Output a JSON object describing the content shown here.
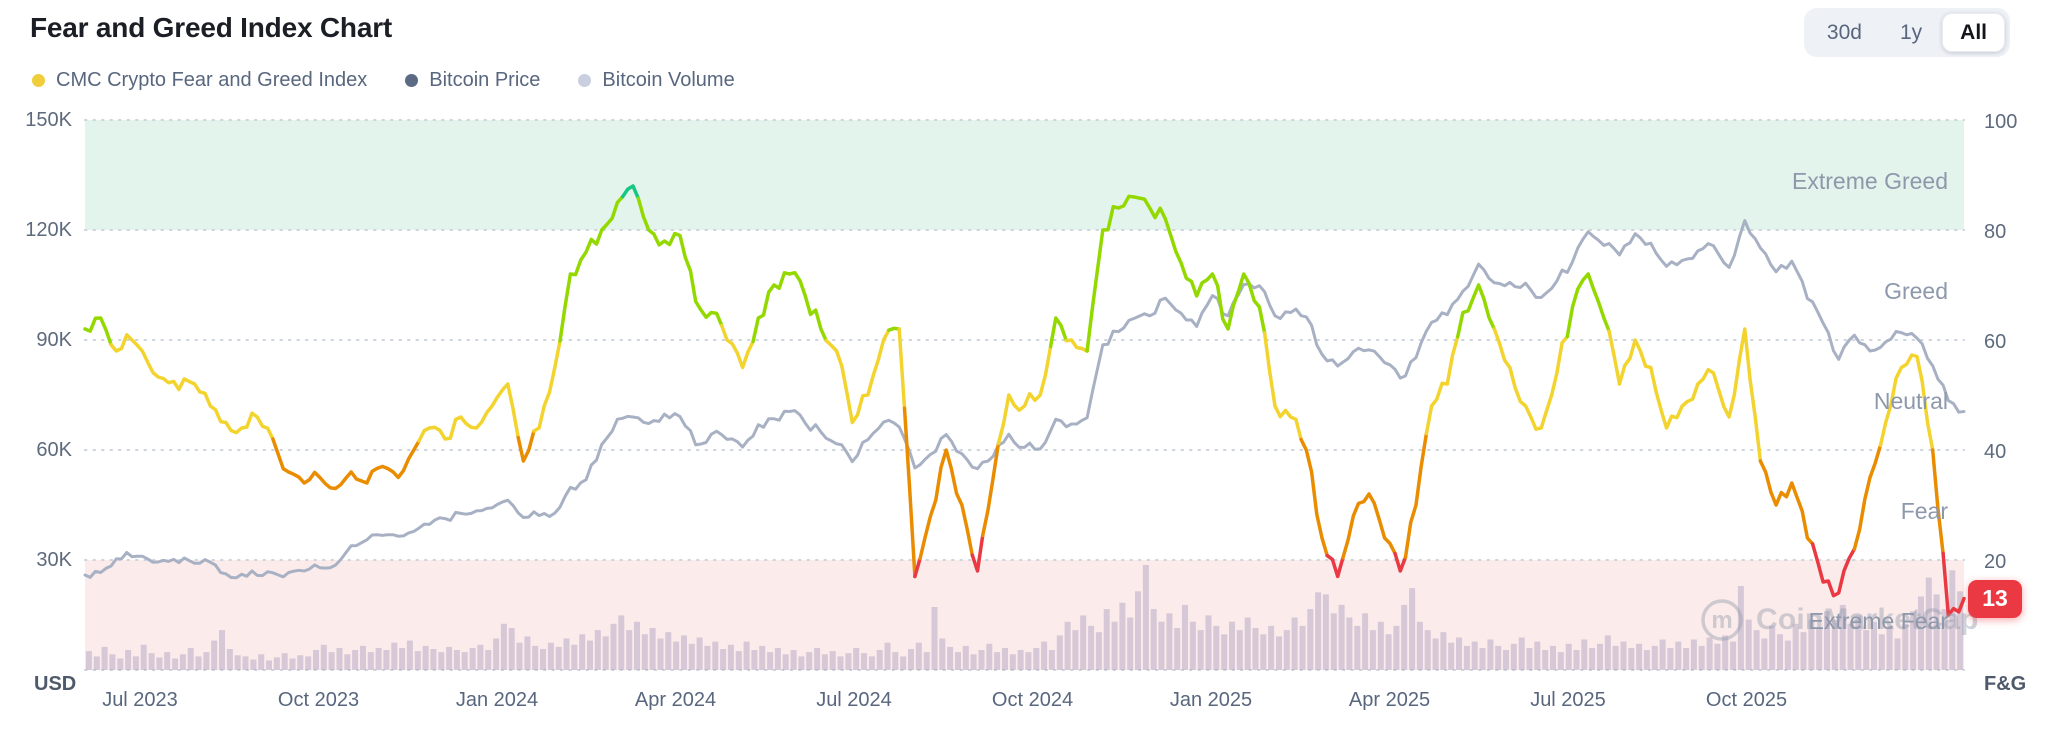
{
  "header": {
    "title": "Fear and Greed Index Chart",
    "range_buttons": [
      {
        "label": "30d",
        "active": false
      },
      {
        "label": "1y",
        "active": false
      },
      {
        "label": "All",
        "active": true
      }
    ]
  },
  "legend": [
    {
      "label": "CMC Crypto Fear and Greed Index",
      "color": "#F0CD3A"
    },
    {
      "label": "Bitcoin Price",
      "color": "#5D6A85"
    },
    {
      "label": "Bitcoin Volume",
      "color": "#C9CFDF"
    }
  ],
  "badge": {
    "value": "13",
    "color": "#EA3943"
  },
  "watermark": {
    "text": "CoinMarketCap"
  },
  "chart_data": {
    "type": "line",
    "title": "Fear and Greed Index Chart",
    "x_ticks": [
      "Jul 2023",
      "Oct 2023",
      "Jan 2024",
      "Apr 2024",
      "Jul 2024",
      "Oct 2024",
      "Jan 2025",
      "Apr 2025",
      "Jul 2025",
      "Oct 2025"
    ],
    "y_left": {
      "unit": "USD",
      "labels": [
        "150K",
        "120K",
        "90K",
        "60K",
        "30K"
      ],
      "range_usd_k": [
        0,
        150
      ],
      "grid": true
    },
    "y_right": {
      "unit": "F&G",
      "labels": [
        "100",
        "80",
        "60",
        "40",
        "20"
      ],
      "range": [
        0,
        100
      ]
    },
    "bands": [
      {
        "name": "extreme-greed-band",
        "range": [
          80,
          100
        ],
        "color": "#e3f4ec"
      },
      {
        "name": "extreme-fear-band",
        "range": [
          0,
          20
        ],
        "color": "#fcebeb"
      }
    ],
    "zone_labels": [
      {
        "label": "Extreme Greed",
        "fg": 90
      },
      {
        "label": "Greed",
        "fg": 70
      },
      {
        "label": "Neutral",
        "fg": 50
      },
      {
        "label": "Fear",
        "fg": 30
      },
      {
        "label": "Extreme Fear",
        "fg": 10
      }
    ],
    "fg_series": {
      "name": "CMC Crypto Fear and Greed Index",
      "current_value": 13,
      "color_stops": [
        {
          "min": 86,
          "color": "#16C784"
        },
        {
          "min": 61,
          "color": "#93D900"
        },
        {
          "min": 42,
          "color": "#F3D42F"
        },
        {
          "min": 21,
          "color": "#EA8C00"
        },
        {
          "min": 0,
          "color": "#EA3943"
        }
      ],
      "values": [
        62,
        64,
        58,
        60,
        56,
        53,
        51,
        52,
        48,
        45,
        44,
        46,
        42,
        36,
        34,
        35,
        33,
        36,
        34,
        37,
        35,
        40,
        44,
        42,
        46,
        44,
        48,
        52,
        38,
        44,
        55,
        72,
        76,
        80,
        85,
        88,
        80,
        78,
        79,
        67,
        65,
        60,
        55,
        64,
        70,
        72,
        68,
        62,
        58,
        45,
        50,
        60,
        62,
        17,
        28,
        40,
        30,
        18,
        35,
        50,
        48,
        50,
        64,
        60,
        58,
        80,
        84,
        86,
        84,
        82,
        74,
        68,
        72,
        62,
        72,
        66,
        48,
        46,
        40,
        24,
        17,
        28,
        32,
        24,
        18,
        30,
        48,
        52,
        65,
        70,
        62,
        55,
        48,
        44,
        54,
        66,
        72,
        64,
        52,
        60,
        55,
        44,
        48,
        52,
        54,
        46,
        62,
        38,
        30,
        34,
        24,
        16,
        14,
        22,
        35,
        45,
        55,
        57,
        40,
        10,
        13
      ]
    },
    "btc_series": {
      "name": "Bitcoin Price",
      "color": "#a8b1c4",
      "values_usd_k": [
        25.9,
        26.6,
        30.3,
        30.9,
        30.3,
        29.9,
        29.3,
        29.1,
        29.4,
        26.2,
        26.1,
        25.8,
        26.5,
        26.6,
        27.0,
        27.9,
        28.6,
        33.9,
        35.5,
        36.7,
        36.5,
        37.8,
        39.7,
        41.3,
        42.7,
        43.4,
        44.2,
        46.3,
        41.6,
        42.1,
        42.8,
        49.8,
        51.9,
        61.5,
        68.4,
        69.0,
        67.2,
        69.8,
        69.1,
        61.4,
        64.3,
        62.9,
        60.8,
        66.9,
        68.5,
        70.5,
        67.3,
        64.9,
        61.7,
        56.8,
        62.8,
        67.6,
        66.3,
        55.1,
        58.8,
        64.2,
        59.0,
        54.9,
        58.3,
        64.3,
        60.7,
        60.3,
        68.4,
        67.1,
        68.8,
        88.7,
        92.3,
        95.9,
        96.6,
        101.4,
        97.3,
        93.7,
        102.1,
        96.6,
        105.1,
        104.8,
        96.6,
        97.5,
        96.3,
        86.1,
        82.9,
        86.8,
        87.3,
        83.8,
        79.6,
        85.2,
        94.8,
        96.9,
        103.3,
        110.7,
        105.6,
        105.7,
        105.5,
        101.6,
        106.1,
        111.3,
        119.5,
        115.8,
        113.2,
        119.0,
        116.4,
        110.1,
        111.7,
        114.3,
        115.7,
        109.8,
        122.6,
        115.1,
        108.6,
        111.5,
        101.3,
        94.6,
        84.7,
        91.3,
        87.0,
        89.5,
        92.0,
        90.5,
        83.0,
        73.5,
        70.5
      ]
    },
    "volume_series": {
      "name": "Bitcoin Volume",
      "color": "#a89dbd",
      "opacity": 0.45,
      "values_rel": [
        18,
        13,
        22,
        15,
        11,
        19,
        13,
        24,
        16,
        12,
        17,
        11,
        15,
        21,
        13,
        17,
        28,
        38,
        20,
        14,
        13,
        10,
        15,
        9,
        12,
        16,
        11,
        14,
        13,
        19,
        24,
        17,
        21,
        15,
        19,
        23,
        17,
        21,
        19,
        26,
        21,
        28,
        18,
        23,
        20,
        17,
        22,
        19,
        17,
        21,
        24,
        19,
        30,
        44,
        40,
        26,
        32,
        23,
        20,
        26,
        22,
        30,
        24,
        34,
        28,
        38,
        32,
        44,
        52,
        38,
        46,
        34,
        40,
        30,
        36,
        27,
        33,
        25,
        31,
        23,
        27,
        20,
        24,
        18,
        27,
        19,
        23,
        17,
        21,
        15,
        19,
        13,
        17,
        21,
        15,
        18,
        13,
        16,
        21,
        16,
        13,
        19,
        26,
        17,
        13,
        20,
        26,
        17,
        60,
        30,
        22,
        17,
        23,
        15,
        19,
        25,
        17,
        21,
        15,
        19,
        17,
        21,
        27,
        19,
        33,
        46,
        38,
        52,
        42,
        36,
        58,
        46,
        64,
        50,
        75,
        100,
        58,
        46,
        54,
        40,
        62,
        46,
        38,
        52,
        42,
        34,
        46,
        38,
        50,
        40,
        34,
        42,
        32,
        38,
        50,
        42,
        58,
        74,
        72,
        54,
        62,
        50,
        42,
        54,
        38,
        46,
        34,
        42,
        62,
        78,
        46,
        38,
        30,
        36,
        26,
        31,
        23,
        27,
        21,
        29,
        23,
        19,
        25,
        31,
        21,
        27,
        19,
        23,
        17,
        25,
        19,
        29,
        21,
        25,
        33,
        23,
        27,
        21,
        25,
        19,
        23,
        29,
        21,
        27,
        21,
        29,
        23,
        31,
        25,
        33,
        27,
        80,
        48,
        38,
        30,
        42,
        34,
        28,
        44,
        36,
        48,
        40,
        56,
        48,
        62,
        44,
        52,
        38,
        46,
        34,
        42,
        30,
        44,
        56,
        70,
        88,
        72,
        58,
        95,
        75
      ]
    },
    "grid_color": "#cdd4dc",
    "axis_text_color": "#58667e"
  }
}
